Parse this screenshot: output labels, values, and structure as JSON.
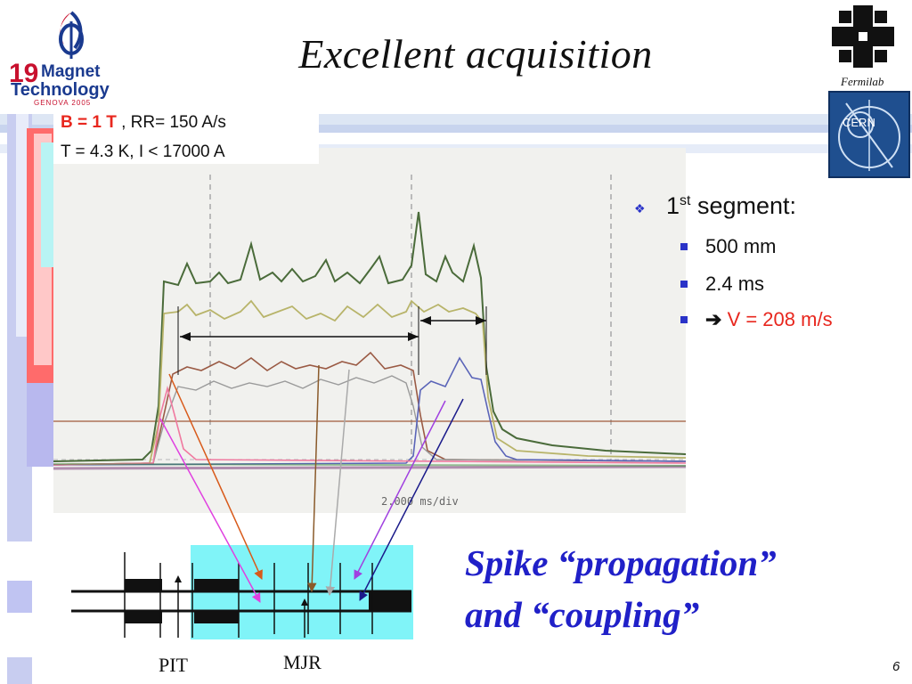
{
  "slide": {
    "title": "Excellent acquisition",
    "page_number": "6"
  },
  "logos": {
    "conference": {
      "number": "19",
      "line1": "Magnet",
      "line2": "Technology",
      "line3": "GENOVA 2005"
    },
    "fermilab": {
      "label": "Fermilab"
    },
    "cern": {
      "label": "CERN"
    }
  },
  "parameters": {
    "field_label": "B = 1 T",
    "ramp_rate": " , RR= 150 A/s",
    "line2": "T = 4.3 K, I < 17000 A"
  },
  "bullets": {
    "main": {
      "prefix": "1",
      "superscript": "st",
      "suffix": " segment:"
    },
    "items": [
      {
        "text": "500 mm"
      },
      {
        "text": "2.4 ms"
      },
      {
        "arrow": "➔",
        "text": "V = 208 m/s"
      }
    ]
  },
  "scope": {
    "timebase_label": "2.000 ms/div"
  },
  "caption": {
    "line1": "Spike “propagation”",
    "line2": "and “coupling”"
  },
  "diagram_labels": {
    "left": "PIT",
    "right": "MJR"
  },
  "colors": {
    "bullet_blue": "#2a33c8",
    "highlight_red": "#e8271e",
    "caption_blue": "#2020c8",
    "diagram_cyan": "#80f4f8"
  }
}
